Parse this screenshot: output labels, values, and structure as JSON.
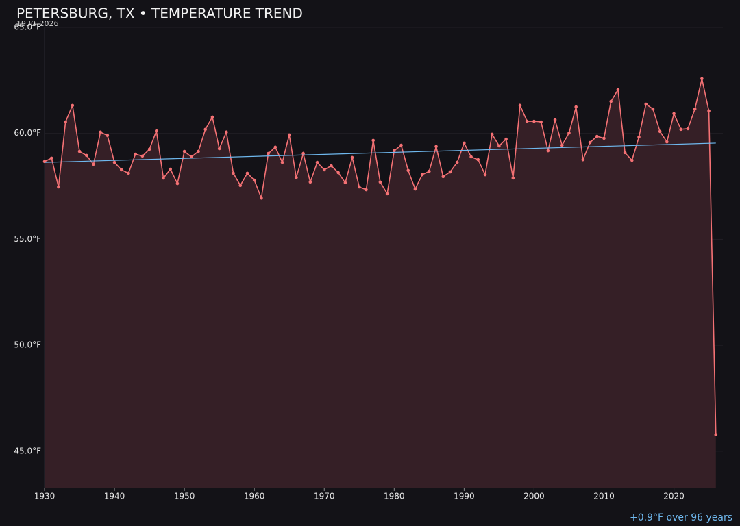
{
  "chart_data": {
    "type": "line",
    "title": "PETERSBURG, TX • TEMPERATURE TREND",
    "subtitle": "1930–2026",
    "annotation": "+0.9°F over 96 years",
    "x": [
      1930,
      1931,
      1932,
      1933,
      1934,
      1935,
      1936,
      1937,
      1938,
      1939,
      1940,
      1941,
      1942,
      1943,
      1944,
      1945,
      1946,
      1947,
      1948,
      1949,
      1950,
      1951,
      1952,
      1953,
      1954,
      1955,
      1956,
      1957,
      1958,
      1959,
      1960,
      1961,
      1962,
      1963,
      1964,
      1965,
      1966,
      1967,
      1968,
      1969,
      1970,
      1971,
      1972,
      1973,
      1974,
      1975,
      1976,
      1977,
      1978,
      1979,
      1980,
      1981,
      1982,
      1983,
      1984,
      1985,
      1986,
      1987,
      1988,
      1989,
      1990,
      1991,
      1992,
      1993,
      1994,
      1995,
      1996,
      1997,
      1998,
      1999,
      2000,
      2001,
      2002,
      2003,
      2004,
      2005,
      2006,
      2007,
      2008,
      2009,
      2010,
      2011,
      2012,
      2013,
      2014,
      2015,
      2016,
      2017,
      2018,
      2019,
      2020,
      2021,
      2022,
      2023,
      2024,
      2025,
      2026
    ],
    "series": [
      {
        "color": "#f47174",
        "area_color": "#351f26",
        "values": [
          58.67,
          58.83,
          57.47,
          60.54,
          61.32,
          59.15,
          58.96,
          58.54,
          60.06,
          59.9,
          58.63,
          58.28,
          58.12,
          59.02,
          58.93,
          59.25,
          60.12,
          57.89,
          58.31,
          57.63,
          59.15,
          58.89,
          59.15,
          60.19,
          60.77,
          59.28,
          60.06,
          58.12,
          57.54,
          58.12,
          57.79,
          56.95,
          59.05,
          59.35,
          58.63,
          59.93,
          57.92,
          59.05,
          57.7,
          58.63,
          58.28,
          58.47,
          58.15,
          57.67,
          58.86,
          57.47,
          57.34,
          59.67,
          57.7,
          57.15,
          59.18,
          59.44,
          58.25,
          57.37,
          58.05,
          58.21,
          59.38,
          57.96,
          58.18,
          58.63,
          59.54,
          58.89,
          58.76,
          58.05,
          59.96,
          59.41,
          59.73,
          57.89,
          61.32,
          60.57,
          60.57,
          60.54,
          59.18,
          60.64,
          59.44,
          60.02,
          61.25,
          58.76,
          59.57,
          59.86,
          59.77,
          61.51,
          62.06,
          59.09,
          58.73,
          59.83,
          61.38,
          61.15,
          60.09,
          59.6,
          60.93,
          60.19,
          60.22,
          61.15,
          62.58,
          61.06,
          45.78
        ]
      }
    ],
    "trend": {
      "x": [
        1930,
        2026
      ],
      "values": [
        58.63,
        59.54
      ],
      "color": "#6fb8ee"
    },
    "xlim": [
      1930,
      2027
    ],
    "ylim": [
      43.25,
      65
    ],
    "xticks": [
      1930,
      1940,
      1950,
      1960,
      1970,
      1980,
      1990,
      2000,
      2010,
      2020
    ],
    "yticks": [
      {
        "value": 45,
        "label": "45.0°F"
      },
      {
        "value": 50,
        "label": "50.0°F"
      },
      {
        "value": 55,
        "label": "55.0°F"
      },
      {
        "value": 60,
        "label": "60.0°F"
      },
      {
        "value": 65,
        "label": "65.0°F"
      }
    ],
    "grid": true
  }
}
